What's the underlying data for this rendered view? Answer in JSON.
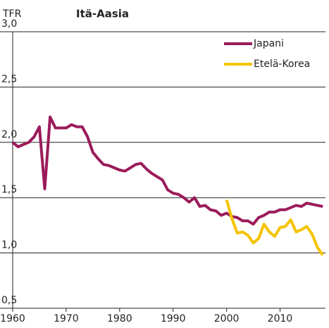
{
  "chart_data": {
    "type": "line",
    "title": "Itä-Aasia",
    "y_label": "TFR",
    "x": [
      1960,
      1961,
      1962,
      1963,
      1964,
      1965,
      1966,
      1967,
      1968,
      1969,
      1970,
      1971,
      1972,
      1973,
      1974,
      1975,
      1976,
      1977,
      1978,
      1979,
      1980,
      1981,
      1982,
      1983,
      1984,
      1985,
      1986,
      1987,
      1988,
      1989,
      1990,
      1991,
      1992,
      1993,
      1994,
      1995,
      1996,
      1997,
      1998,
      1999,
      2000,
      2001,
      2002,
      2003,
      2004,
      2005,
      2006,
      2007,
      2008,
      2009,
      2010,
      2011,
      2012,
      2013,
      2014,
      2015,
      2016,
      2017,
      2018
    ],
    "series": [
      {
        "name": "Japani",
        "color": "#9b1b5a",
        "values": [
          2.0,
          1.96,
          1.98,
          2.0,
          2.05,
          2.14,
          1.58,
          2.23,
          2.13,
          2.13,
          2.13,
          2.16,
          2.14,
          2.14,
          2.05,
          1.91,
          1.85,
          1.8,
          1.79,
          1.77,
          1.75,
          1.74,
          1.77,
          1.8,
          1.81,
          1.76,
          1.72,
          1.69,
          1.66,
          1.57,
          1.54,
          1.53,
          1.5,
          1.46,
          1.5,
          1.42,
          1.43,
          1.39,
          1.38,
          1.34,
          1.36,
          1.33,
          1.32,
          1.29,
          1.29,
          1.26,
          1.32,
          1.34,
          1.37,
          1.37,
          1.39,
          1.39,
          1.41,
          1.43,
          1.42,
          1.45,
          1.44,
          1.43,
          1.42
        ]
      },
      {
        "name": "Etelä-Korea",
        "color": "#f5c400",
        "values": [
          null,
          null,
          null,
          null,
          null,
          null,
          null,
          null,
          null,
          null,
          null,
          null,
          null,
          null,
          null,
          null,
          null,
          null,
          null,
          null,
          null,
          null,
          null,
          null,
          null,
          null,
          null,
          null,
          null,
          null,
          null,
          null,
          null,
          null,
          null,
          null,
          null,
          null,
          null,
          null,
          1.48,
          1.31,
          1.18,
          1.19,
          1.16,
          1.09,
          1.13,
          1.26,
          1.19,
          1.15,
          1.23,
          1.24,
          1.3,
          1.19,
          1.21,
          1.24,
          1.17,
          1.05,
          0.98
        ]
      }
    ],
    "xlim": [
      1960,
      2018.5
    ],
    "xticks": [
      1960,
      1970,
      1980,
      1990,
      2000,
      2010
    ],
    "ylim": [
      0.5,
      3.0
    ],
    "yticks": [
      {
        "value": 0.5,
        "label": "0,5"
      },
      {
        "value": 1.0,
        "label": "1,0"
      },
      {
        "value": 1.5,
        "label": "1,5"
      },
      {
        "value": 2.0,
        "label": "2,0"
      },
      {
        "value": 2.5,
        "label": "2,5"
      },
      {
        "value": 3.0,
        "label": "3,0"
      }
    ],
    "grid": true,
    "legend": "top-right"
  }
}
